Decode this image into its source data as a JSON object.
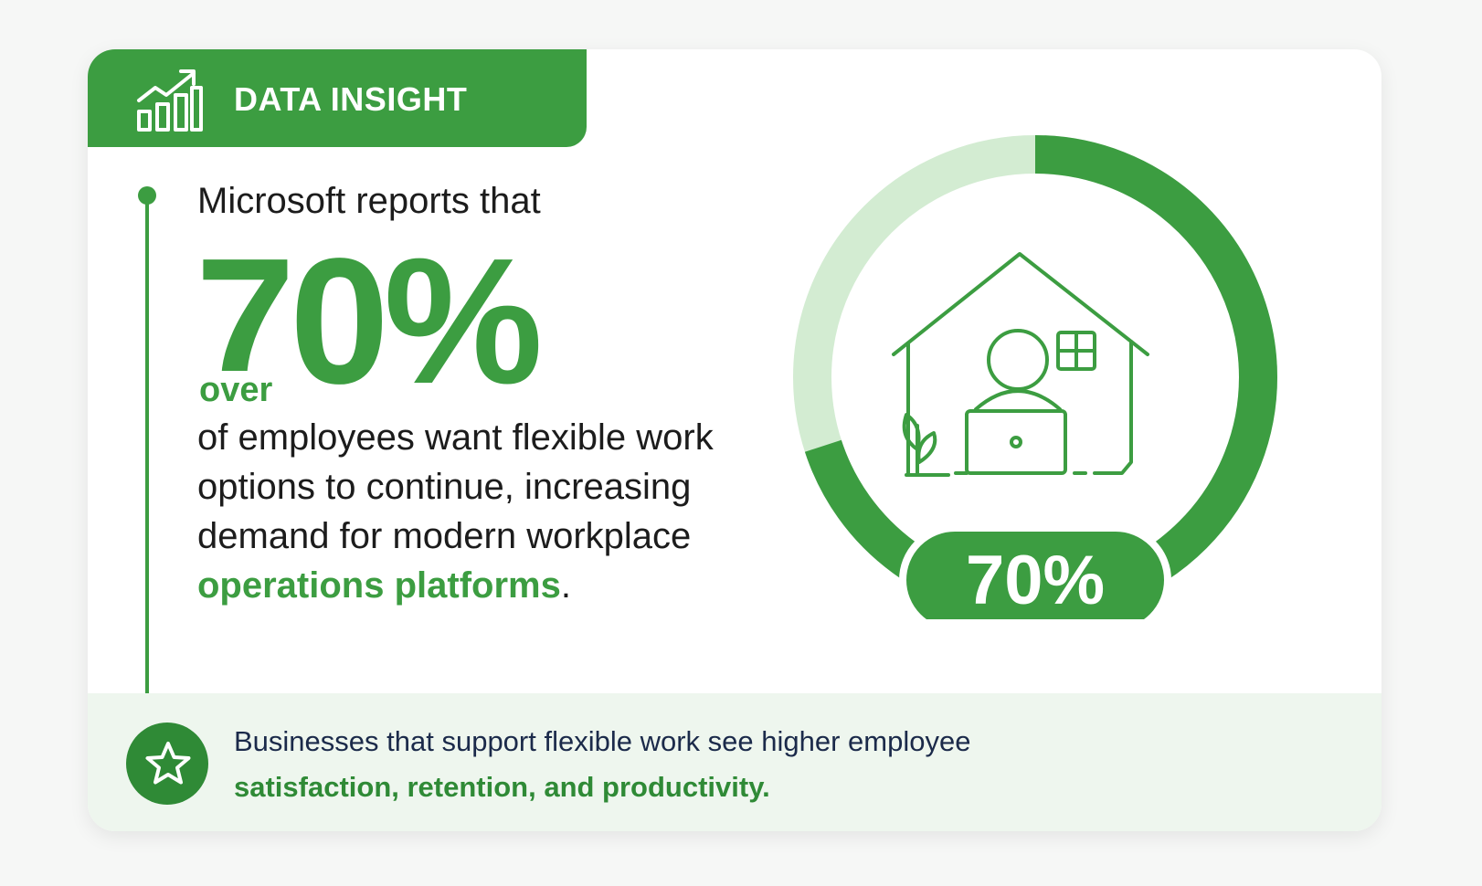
{
  "header": {
    "title": "DATA INSIGHT",
    "icon": "growth-chart-icon"
  },
  "insight": {
    "lead": "Microsoft reports that",
    "stat": "70%",
    "stat_prefix": "over",
    "body": "of employees want flexible work options to continue, increasing demand for modern workplace",
    "highlight": "operations platforms",
    "period": "."
  },
  "donut": {
    "percent_fraction": 0.7,
    "label": "70%",
    "illustration": "home-office-icon",
    "colors": {
      "filled": "#3c9d41",
      "remaining": "#d3ecd2"
    }
  },
  "footer": {
    "icon": "star-icon",
    "line1": "Businesses that support flexible work see higher employee",
    "line2": "satisfaction, retention, and productivity."
  },
  "colors": {
    "brand_green": "#3c9d41",
    "dark_green": "#2f8a36",
    "text_dark": "#1c1c1c",
    "footer_text": "#1b2a4a"
  }
}
